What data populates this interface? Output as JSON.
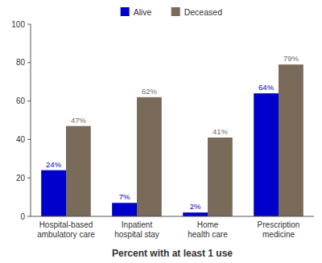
{
  "chart_data": {
    "type": "bar",
    "xlabel": "Percent with at least 1 use",
    "categories": [
      "Hospital-based\nambulatory care",
      "Inpatient\nhospital stay",
      "Home\nhealth care",
      "Prescription\nmedicine"
    ],
    "series": [
      {
        "name": "Alive",
        "color": "#0000CC",
        "values": [
          24,
          7,
          2,
          64
        ],
        "value_labels": [
          "24%",
          "7%",
          "2%",
          "64%"
        ]
      },
      {
        "name": "Deceased",
        "color": "#7A6A5A",
        "values": [
          47,
          62,
          41,
          79
        ],
        "value_labels": [
          "47%",
          "62%",
          "41%",
          "79%"
        ]
      }
    ],
    "ylim": [
      0,
      100
    ],
    "yticks": [
      0,
      20,
      40,
      60,
      80,
      100
    ],
    "grid": false,
    "legend": "upper center",
    "data_labels": true
  }
}
